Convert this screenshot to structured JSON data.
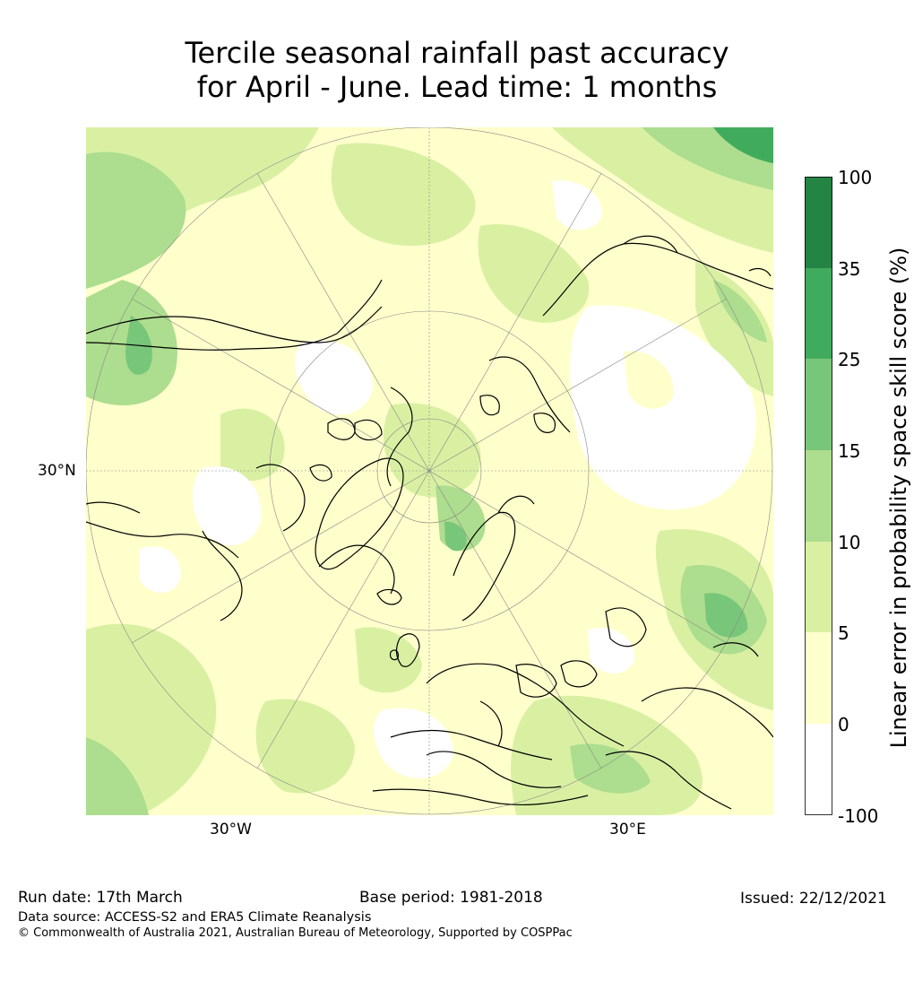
{
  "title": {
    "line1": "Tercile seasonal rainfall past accuracy",
    "line2": "for April - June. Lead time: 1 months"
  },
  "map": {
    "lat_label": "30°N",
    "lon_labels": [
      "30°W",
      "30°E"
    ]
  },
  "colorbar": {
    "label": "Linear error in probability space skill score (%)",
    "ticks": [
      "100",
      "35",
      "25",
      "15",
      "10",
      "5",
      "0",
      "-100"
    ],
    "colors": [
      "#ffffff",
      "#ffffcc",
      "#d9f0a3",
      "#addd8e",
      "#78c679",
      "#41ab5d",
      "#238443"
    ]
  },
  "footer": {
    "run_date": "Run date: 17th March",
    "base_period": "Base period: 1981-2018",
    "issued": "Issued: 22/12/2021",
    "data_source": "Data source: ACCESS-S2 and ERA5 Climate Reanalysis",
    "copyright": "© Commonwealth of Australia 2021, Australian Bureau of Meteorology, Supported by COSPPac"
  }
}
